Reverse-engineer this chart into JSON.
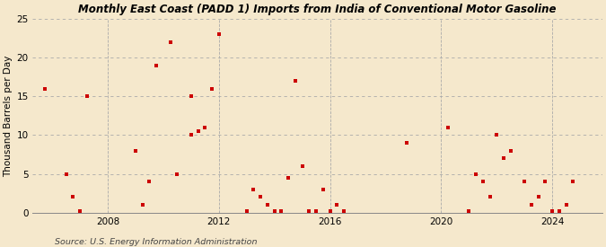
{
  "title": "Monthly East Coast (PADD 1) Imports from India of Conventional Motor Gasoline",
  "ylabel": "Thousand Barrels per Day",
  "source": "Source: U.S. Energy Information Administration",
  "background_color": "#f5e8cc",
  "plot_bg_color": "#f5e8cc",
  "dot_color": "#cc0000",
  "ylim": [
    0,
    25
  ],
  "yticks": [
    0,
    5,
    10,
    15,
    20,
    25
  ],
  "xlim_start": 2005.3,
  "xlim_end": 2025.8,
  "xticks": [
    2008,
    2012,
    2016,
    2020,
    2024
  ],
  "data_points": [
    [
      2005.75,
      16.0
    ],
    [
      2006.5,
      5.0
    ],
    [
      2006.75,
      2.0
    ],
    [
      2007.0,
      0.2
    ],
    [
      2007.25,
      15.0
    ],
    [
      2009.0,
      8.0
    ],
    [
      2009.25,
      1.0
    ],
    [
      2009.5,
      4.0
    ],
    [
      2009.75,
      19.0
    ],
    [
      2010.25,
      22.0
    ],
    [
      2010.5,
      5.0
    ],
    [
      2011.0,
      15.0
    ],
    [
      2011.0,
      10.0
    ],
    [
      2011.25,
      10.5
    ],
    [
      2011.5,
      11.0
    ],
    [
      2011.75,
      16.0
    ],
    [
      2012.0,
      23.0
    ],
    [
      2013.0,
      0.2
    ],
    [
      2013.25,
      3.0
    ],
    [
      2013.5,
      2.0
    ],
    [
      2013.75,
      1.0
    ],
    [
      2014.0,
      0.2
    ],
    [
      2014.25,
      0.2
    ],
    [
      2014.5,
      4.5
    ],
    [
      2014.75,
      17.0
    ],
    [
      2015.0,
      6.0
    ],
    [
      2015.25,
      0.2
    ],
    [
      2015.5,
      0.2
    ],
    [
      2015.75,
      3.0
    ],
    [
      2016.0,
      0.2
    ],
    [
      2016.25,
      1.0
    ],
    [
      2016.5,
      0.2
    ],
    [
      2018.75,
      9.0
    ],
    [
      2020.25,
      11.0
    ],
    [
      2021.0,
      0.2
    ],
    [
      2021.25,
      5.0
    ],
    [
      2021.5,
      4.0
    ],
    [
      2021.75,
      2.0
    ],
    [
      2022.0,
      10.0
    ],
    [
      2022.25,
      7.0
    ],
    [
      2022.5,
      8.0
    ],
    [
      2023.0,
      4.0
    ],
    [
      2023.25,
      1.0
    ],
    [
      2023.5,
      2.0
    ],
    [
      2023.75,
      4.0
    ],
    [
      2024.0,
      0.2
    ],
    [
      2024.25,
      0.2
    ],
    [
      2024.5,
      1.0
    ],
    [
      2024.75,
      4.0
    ]
  ]
}
